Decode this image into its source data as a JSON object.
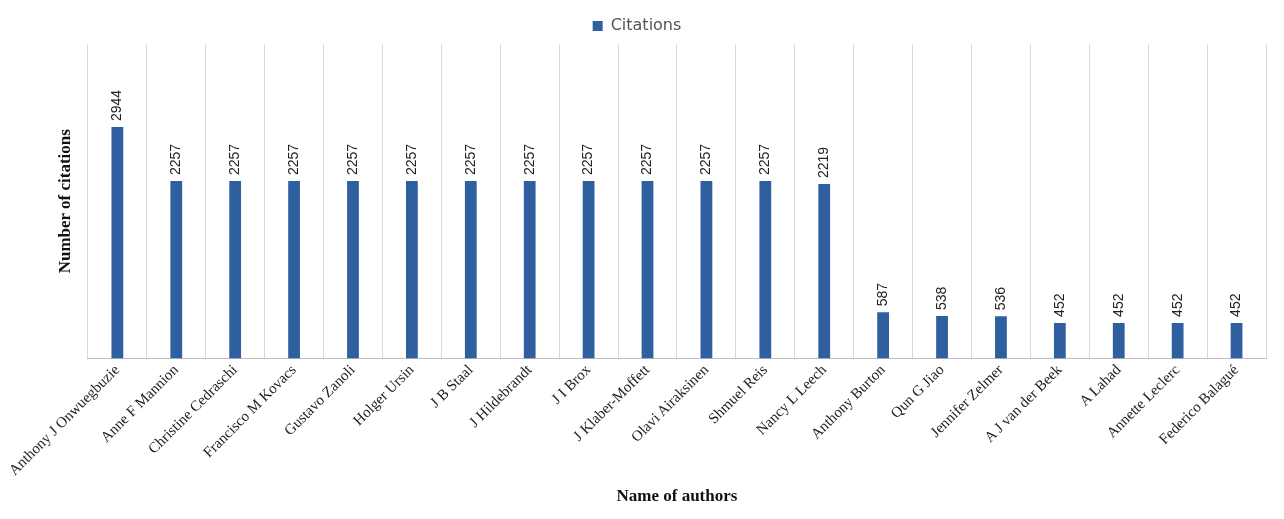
{
  "chart_data": {
    "type": "bar",
    "xlabel": "Name of authors",
    "ylabel": "Number of citations",
    "categories": [
      "Anthony J Onwuegbuzie",
      "Anne F Mannion",
      "Christine Cedraschi",
      "Francisco M Kovacs",
      "Gustavo Zanoli",
      "Holger Ursin",
      "J B Staal",
      "J Hildebrandt",
      "J I Brox",
      "J Klaber-Moffett",
      "Olavi Airaksinen",
      "Shmuel Reis",
      "Nancy L Leech",
      "Anthony Burton",
      "Qun G Jiao",
      "Jennifer Zelmer",
      "A J van der Beek",
      "A Lahad",
      "Annette Leclerc",
      "Federico Balagué"
    ],
    "series": [
      {
        "name": "Citations",
        "color": "#2f5f9f",
        "values": [
          2944,
          2257,
          2257,
          2257,
          2257,
          2257,
          2257,
          2257,
          2257,
          2257,
          2257,
          2257,
          2219,
          587,
          538,
          536,
          452,
          452,
          452,
          452
        ]
      }
    ],
    "ylim": [
      0,
      4000
    ],
    "data_labels": true,
    "grid": "x",
    "legend": "top"
  }
}
